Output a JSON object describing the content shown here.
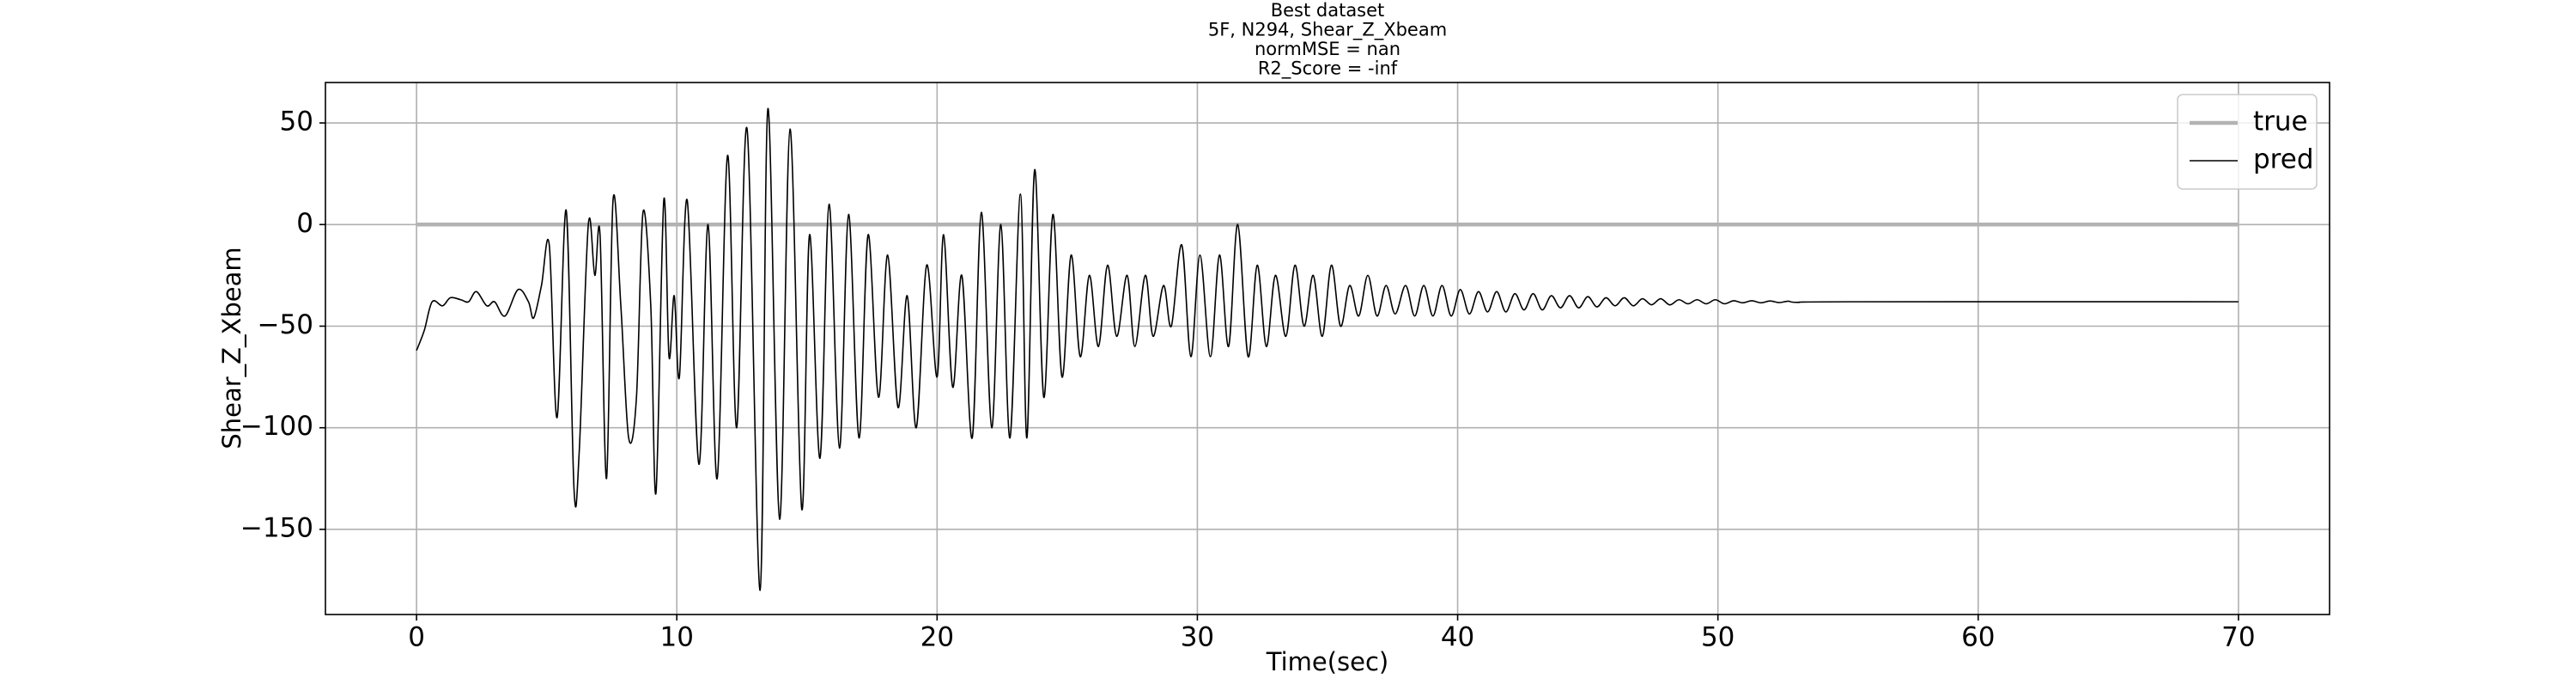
{
  "chart_data": {
    "type": "line",
    "title": [
      "Best dataset",
      "5F, N294, Shear_Z_Xbeam",
      "normMSE = nan",
      "R2_Score = -inf"
    ],
    "xlabel": "Time(sec)",
    "ylabel": "Shear_Z_Xbeam",
    "xlim": [
      -3.5,
      73.5
    ],
    "ylim": [
      -191.9,
      69.9
    ],
    "xticks": [
      0,
      10,
      20,
      30,
      40,
      50,
      60,
      70
    ],
    "yticks": [
      {
        "value": -150,
        "label": "−150"
      },
      {
        "value": -100,
        "label": "−100"
      },
      {
        "value": -50,
        "label": "−50"
      },
      0,
      50
    ],
    "grid": true,
    "legend": "upper right",
    "series": [
      {
        "name": "true",
        "color": "#b3b3b3",
        "x": [
          0,
          70
        ],
        "values": [
          0,
          0
        ]
      },
      {
        "name": "pred",
        "color": "#000000",
        "x": [
          0,
          0.3,
          0.6,
          1.0,
          1.3,
          1.7,
          2.0,
          2.3,
          2.7,
          3.0,
          3.4,
          3.9,
          4.3,
          4.5,
          4.8,
          5.1,
          5.4,
          5.75,
          6.05,
          6.25,
          6.6,
          6.85,
          7.05,
          7.3,
          7.55,
          7.85,
          8.15,
          8.45,
          8.7,
          9.0,
          9.2,
          9.5,
          9.7,
          9.9,
          10.1,
          10.4,
          10.85,
          11.2,
          11.55,
          11.95,
          12.3,
          12.7,
          13.2,
          13.5,
          13.95,
          14.35,
          14.8,
          15.1,
          15.5,
          15.85,
          16.25,
          16.6,
          17.0,
          17.35,
          17.75,
          18.1,
          18.5,
          18.85,
          19.2,
          19.6,
          20.0,
          20.25,
          20.6,
          20.95,
          21.35,
          21.7,
          22.1,
          22.45,
          22.8,
          23.2,
          23.45,
          23.75,
          24.1,
          24.45,
          24.8,
          25.15,
          25.5,
          25.85,
          26.2,
          26.55,
          26.9,
          27.3,
          27.6,
          28.0,
          28.3,
          28.7,
          29.0,
          29.4,
          29.75,
          30.1,
          30.5,
          30.85,
          31.2,
          31.55,
          31.95,
          32.3,
          32.65,
          33.0,
          33.4,
          33.75,
          34.1,
          34.45,
          34.8,
          35.15,
          35.5,
          35.85,
          36.2,
          36.55,
          36.9,
          37.25,
          37.6,
          38.0,
          38.35,
          38.7,
          39.05,
          39.4,
          39.75,
          40.1,
          40.45,
          40.8,
          41.15,
          41.5,
          41.85,
          42.2,
          42.55,
          42.9,
          43.25,
          43.6,
          43.95,
          44.3,
          44.65,
          45.0,
          45.35,
          45.7,
          46.05,
          46.4,
          46.75,
          47.1,
          47.45,
          47.8,
          48.15,
          48.5,
          48.85,
          49.2,
          49.55,
          49.9,
          50.25,
          50.6,
          50.95,
          51.3,
          51.65,
          52.0,
          52.35,
          52.7,
          53.05,
          55,
          70
        ],
        "values": [
          -62,
          -52,
          -38,
          -40,
          -36,
          -37,
          -38,
          -33,
          -40,
          -38,
          -45,
          -32,
          -38,
          -46,
          -30,
          -10,
          -95,
          7,
          -130,
          -112,
          0,
          -25,
          -5,
          -125,
          12,
          -40,
          -105,
          -85,
          6,
          -40,
          -132,
          12,
          -65,
          -35,
          -75,
          12,
          -118,
          0,
          -125,
          34,
          -100,
          47,
          -180,
          57,
          -145,
          47,
          -140,
          -5,
          -115,
          10,
          -110,
          5,
          -105,
          -5,
          -85,
          -15,
          -90,
          -35,
          -100,
          -20,
          -75,
          -5,
          -80,
          -25,
          -105,
          6,
          -100,
          0,
          -105,
          15,
          -105,
          27,
          -85,
          5,
          -75,
          -15,
          -65,
          -25,
          -60,
          -20,
          -55,
          -25,
          -60,
          -25,
          -55,
          -30,
          -50,
          -10,
          -65,
          -15,
          -65,
          -15,
          -60,
          0,
          -65,
          -20,
          -60,
          -25,
          -55,
          -20,
          -50,
          -25,
          -55,
          -20,
          -50,
          -30,
          -45,
          -25,
          -45,
          -30,
          -44,
          -30,
          -45,
          -30,
          -45,
          -30,
          -45,
          -32,
          -44,
          -33,
          -43,
          -33,
          -43,
          -34,
          -42,
          -34,
          -42,
          -35,
          -41,
          -35,
          -41,
          -35.5,
          -40.5,
          -36,
          -40,
          -36,
          -40,
          -36.5,
          -39.5,
          -36.5,
          -39.5,
          -37,
          -39,
          -37,
          -39,
          -37,
          -39,
          -37.5,
          -38.5,
          -37.5,
          -38.5,
          -37.6,
          -38.4,
          -37.7,
          -38.3,
          -38,
          -38
        ]
      }
    ]
  }
}
